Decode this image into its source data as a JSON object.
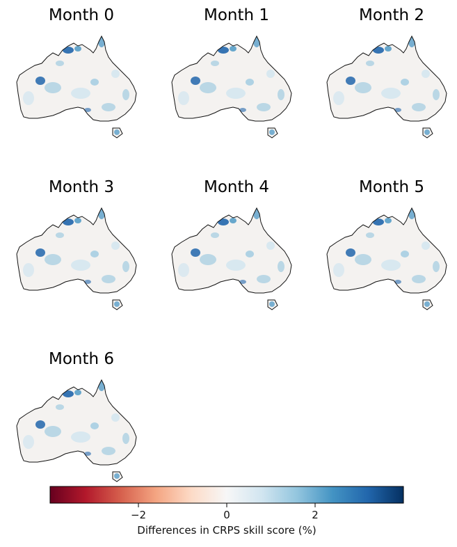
{
  "panels": [
    {
      "title": "Month 0"
    },
    {
      "title": "Month 1"
    },
    {
      "title": "Month 2"
    },
    {
      "title": "Month 3"
    },
    {
      "title": "Month 4"
    },
    {
      "title": "Month 5"
    },
    {
      "title": "Month 6"
    }
  ],
  "colorbar": {
    "label": "Differences in CRPS skill score (%)",
    "range": [
      -4,
      4
    ],
    "ticks": [
      -2,
      0,
      2
    ],
    "tick_labels": [
      "−2",
      "0",
      "2"
    ],
    "colormap": "RdBu",
    "colors": [
      "#67001f",
      "#b2182b",
      "#d6604d",
      "#f4a582",
      "#fddbc7",
      "#f7f7f7",
      "#d1e5f0",
      "#92c5de",
      "#4393c3",
      "#2166ac",
      "#053061"
    ]
  }
}
